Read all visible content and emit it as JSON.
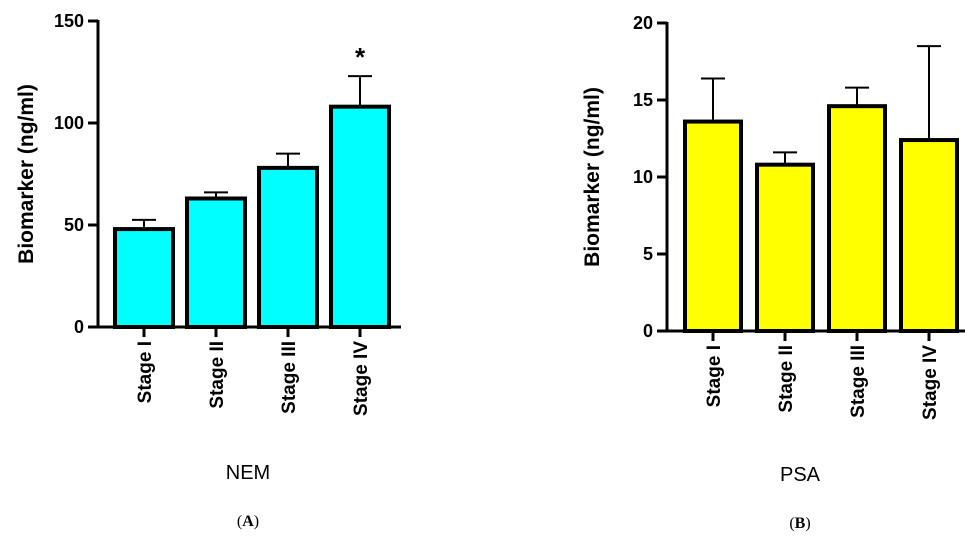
{
  "chart_data": [
    {
      "type": "bar",
      "panel_label": "A",
      "xtitle": "NEM",
      "ylabel": "Biomarker (ng/ml)",
      "categories": [
        "Stage I",
        "Stage II",
        "Stage III",
        "Stage IV"
      ],
      "values": [
        48,
        63,
        78,
        108
      ],
      "errors": [
        4.5,
        3,
        7,
        15
      ],
      "annotations": [
        {
          "category_index": 3,
          "text": "*"
        }
      ],
      "ylim": [
        0,
        150
      ],
      "yticks": [
        0,
        50,
        100,
        150
      ],
      "bar_color": "#00FFFF",
      "grid": false,
      "legend": "none"
    },
    {
      "type": "bar",
      "panel_label": "B",
      "xtitle": "PSA",
      "ylabel": "Biomarker (ng/ml)",
      "categories": [
        "Stage I",
        "Stage II",
        "Stage III",
        "Stage IV"
      ],
      "values": [
        13.6,
        10.8,
        14.6,
        12.4
      ],
      "errors": [
        2.8,
        0.8,
        1.2,
        6.1
      ],
      "annotations": [],
      "ylim": [
        0,
        20
      ],
      "yticks": [
        0,
        5,
        10,
        15,
        20
      ],
      "bar_color": "#FFFF00",
      "grid": false,
      "legend": "none"
    }
  ]
}
